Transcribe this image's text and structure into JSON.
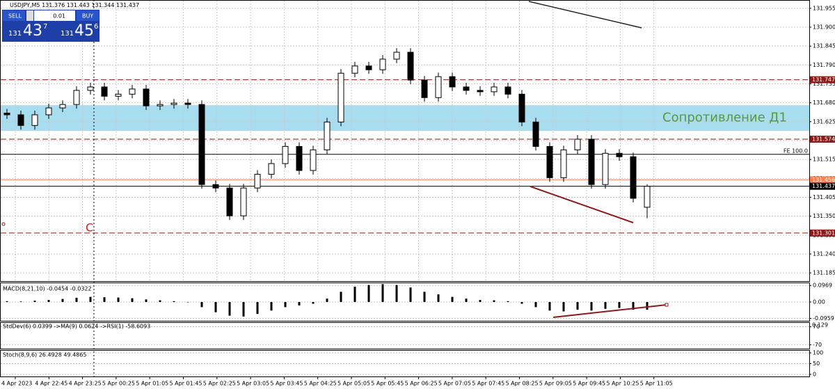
{
  "chart_data": {
    "type": "candlestick",
    "symbol": "USDJPY,M5",
    "ylim": [
      131.161,
      131.979
    ],
    "yticks": [
      131.955,
      {
        "value": 131.9,
        "label": "131.900"
      },
      131.845,
      {
        "value": 131.79,
        "label": "131.790"
      },
      131.735,
      {
        "value": 131.68,
        "label": "131.680"
      },
      131.625,
      {
        "value": 131.57,
        "label": "131.570"
      },
      131.515,
      {
        "value": 131.46,
        "label": "131.460"
      },
      131.405,
      {
        "value": 131.35,
        "label": "131.350"
      },
      131.295,
      {
        "value": 131.24,
        "label": "131.240"
      },
      131.185
    ],
    "grid": true,
    "candles": {
      "open": [
        131.65,
        131.645,
        131.614,
        131.645,
        131.665,
        131.675,
        131.716,
        131.726,
        131.699,
        131.705,
        131.72,
        131.671,
        131.675,
        131.679,
        131.675,
        131.442,
        131.432,
        131.351,
        131.432,
        131.472,
        131.503,
        131.553,
        131.483,
        131.543,
        131.624,
        131.766,
        131.787,
        131.776,
        131.807,
        131.827,
        131.746,
        131.695,
        131.756,
        131.726,
        131.716,
        131.712,
        131.726,
        131.705,
        131.624,
        131.553,
        131.462,
        131.543,
        131.574,
        131.442,
        131.533,
        131.523,
        131.376
      ],
      "high": [
        131.662,
        131.657,
        131.657,
        131.677,
        131.687,
        131.728,
        131.738,
        131.738,
        131.717,
        131.732,
        131.732,
        131.687,
        131.691,
        131.691,
        131.687,
        131.454,
        131.444,
        131.444,
        131.484,
        131.515,
        131.565,
        131.565,
        131.555,
        131.636,
        131.778,
        131.799,
        131.799,
        131.819,
        131.839,
        131.839,
        131.758,
        131.768,
        131.768,
        131.738,
        131.728,
        131.738,
        131.738,
        131.717,
        131.636,
        131.565,
        131.555,
        131.586,
        131.586,
        131.545,
        131.545,
        131.535,
        131.443
      ],
      "low": [
        131.633,
        131.602,
        131.602,
        131.633,
        131.653,
        131.663,
        131.704,
        131.687,
        131.687,
        131.693,
        131.659,
        131.659,
        131.663,
        131.663,
        131.43,
        131.42,
        131.339,
        131.339,
        131.42,
        131.46,
        131.491,
        131.471,
        131.471,
        131.531,
        131.612,
        131.754,
        131.764,
        131.764,
        131.795,
        131.734,
        131.683,
        131.683,
        131.714,
        131.704,
        131.7,
        131.7,
        131.693,
        131.612,
        131.541,
        131.45,
        131.45,
        131.531,
        131.43,
        131.43,
        131.511,
        131.39,
        131.344
      ],
      "close": [
        131.645,
        131.614,
        131.645,
        131.665,
        131.675,
        131.716,
        131.726,
        131.699,
        131.705,
        131.72,
        131.671,
        131.675,
        131.679,
        131.675,
        131.442,
        131.432,
        131.351,
        131.432,
        131.472,
        131.503,
        131.553,
        131.483,
        131.543,
        131.624,
        131.766,
        131.787,
        131.776,
        131.807,
        131.827,
        131.746,
        131.695,
        131.756,
        131.726,
        131.716,
        131.712,
        131.726,
        131.705,
        131.624,
        131.553,
        131.462,
        131.543,
        131.574,
        131.442,
        131.533,
        131.523,
        131.402,
        131.437
      ]
    },
    "levels": [
      {
        "price": 131.747,
        "color": "#8b1a1a",
        "dashed": true
      },
      {
        "price": 131.574,
        "color": "#8b1a1a",
        "dashed": true
      },
      {
        "price": 131.456,
        "color": "#ff7f50",
        "dashed": false
      },
      {
        "price": 131.437,
        "color": "#000000",
        "dashed": false
      },
      {
        "price": 131.301,
        "color": "#8b1a1a",
        "dashed": true
      }
    ],
    "fe_level": {
      "price": 131.53,
      "label": "FE 100.0"
    },
    "zone": {
      "low": 131.598,
      "high": 131.673,
      "label": "Сопротивление Д1",
      "color": "#a8dcef"
    },
    "annotation": "C",
    "time_labels": [
      "4 Apr 2023",
      "4 Apr 22:45",
      "4 Apr 23:25",
      "5 Apr 00:25",
      "5 Apr 01:05",
      "5 Apr 01:45",
      "5 Apr 02:25",
      "5 Apr 03:05",
      "5 Apr 03:45",
      "5 Apr 04:25",
      "5 Apr 05:05",
      "5 Apr 05:45",
      "5 Apr 06:25",
      "5 Apr 07:05",
      "5 Apr 07:45",
      "5 Apr 08:25",
      "5 Apr 09:05",
      "5 Apr 09:45",
      "5 Apr 10:25",
      "5 Apr 11:05"
    ],
    "macd": {
      "title": "MACD(8,21,10) -0.0454 -0.0322",
      "ylim": [
        -0.11,
        0.11
      ],
      "yticks": [
        0.0969,
        {
          "value": 0,
          "label": "0.00"
        },
        -0.0959
      ],
      "values": [
        0.005,
        0.003,
        0.008,
        0.012,
        0.018,
        0.025,
        0.03,
        0.028,
        0.026,
        0.022,
        0.015,
        0.01,
        0.005,
        0.0,
        -0.03,
        -0.06,
        -0.08,
        -0.085,
        -0.07,
        -0.05,
        -0.03,
        -0.02,
        -0.01,
        0.02,
        0.06,
        0.09,
        0.1,
        0.105,
        0.1,
        0.085,
        0.06,
        0.045,
        0.03,
        0.02,
        0.012,
        0.01,
        0.005,
        -0.01,
        -0.03,
        -0.05,
        -0.055,
        -0.045,
        -0.05,
        -0.04,
        -0.035,
        -0.045,
        -0.0454
      ]
    },
    "stddev": {
      "title": "StdDev(6) 0.0399 ->MA(9) 0.0624 ->RSI(1) -58.6093",
      "top_label": "0.129",
      "ylim": [
        -100,
        100
      ],
      "yticks": [
        70,
        -70
      ]
    },
    "stoch": {
      "title": "Stoch(8,9,6) 26.4928 49.4865",
      "ylim": [
        -10,
        110
      ],
      "yticks": [
        100,
        50,
        0
      ]
    }
  },
  "trade_panel": {
    "sell": "SELL",
    "buy": "BUY",
    "lot": "0.01",
    "sell_big": "131",
    "sell_pips": "43",
    "sell_frac": "7",
    "buy_big": "131",
    "buy_pips": "45",
    "buy_frac": "6"
  }
}
